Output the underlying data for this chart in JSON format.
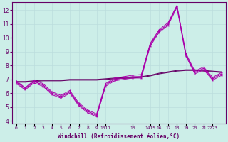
{
  "xlabel": "Windchill (Refroidissement éolien,°C)",
  "background_color": "#cceee8",
  "grid_color": "#bbdddd",
  "line_color_main": "#aa00aa",
  "line_color_dark": "#660066",
  "ylim": [
    3.8,
    12.6
  ],
  "yticks": [
    4,
    5,
    6,
    7,
    8,
    9,
    10,
    11,
    12
  ],
  "x_indices": [
    0,
    1,
    2,
    3,
    4,
    5,
    6,
    7,
    8,
    9,
    10,
    11,
    12,
    13,
    14,
    15,
    16,
    17,
    18,
    19,
    20,
    21,
    22,
    23
  ],
  "xtick_labels": [
    "0",
    "1",
    "2",
    "3",
    "4",
    "5",
    "6",
    "7",
    "8",
    "9",
    "1011",
    "",
    "13",
    "14",
    "15",
    "16",
    "17",
    "18",
    "19",
    "20",
    "21",
    "2223",
    "",
    ""
  ],
  "main_line_x": [
    0,
    1,
    2,
    3,
    4,
    5,
    6,
    7,
    8,
    9,
    10,
    11,
    13,
    14,
    15,
    16,
    17,
    18,
    19,
    20,
    21,
    22,
    23
  ],
  "main_line_y": [
    6.8,
    6.35,
    6.85,
    6.6,
    6.0,
    5.75,
    6.1,
    5.2,
    4.7,
    4.4,
    6.6,
    7.0,
    7.2,
    7.2,
    9.5,
    10.5,
    11.0,
    12.3,
    8.8,
    7.5,
    7.8,
    7.05,
    7.4
  ],
  "upper_line_x": [
    0,
    1,
    2,
    3,
    4,
    5,
    6,
    7,
    8,
    9,
    10,
    11,
    13,
    14,
    15,
    16,
    17,
    18,
    19,
    20,
    21,
    22,
    23
  ],
  "upper_line_y": [
    6.9,
    6.4,
    6.95,
    6.7,
    6.1,
    5.85,
    6.2,
    5.3,
    4.8,
    4.5,
    6.7,
    7.1,
    7.3,
    7.35,
    9.6,
    10.6,
    11.1,
    12.35,
    8.9,
    7.6,
    7.9,
    7.15,
    7.5
  ],
  "lower_line_x": [
    0,
    1,
    2,
    3,
    4,
    5,
    6,
    7,
    8,
    9,
    10,
    11,
    13,
    14,
    15,
    16,
    17,
    18,
    19,
    20,
    21,
    22,
    23
  ],
  "lower_line_y": [
    6.7,
    6.25,
    6.75,
    6.5,
    5.9,
    5.65,
    6.0,
    5.1,
    4.6,
    4.3,
    6.5,
    6.9,
    7.1,
    7.1,
    9.4,
    10.4,
    10.9,
    12.2,
    8.7,
    7.4,
    7.7,
    6.95,
    7.3
  ],
  "flat_line_x": [
    0,
    1,
    2,
    3,
    4,
    5,
    6,
    7,
    8,
    9,
    10,
    11,
    13,
    14,
    15,
    16,
    17,
    18,
    19,
    20,
    21,
    22,
    23
  ],
  "flat_line_y": [
    6.8,
    6.8,
    6.85,
    6.9,
    6.9,
    6.9,
    6.95,
    6.95,
    6.95,
    6.95,
    7.0,
    7.05,
    7.1,
    7.15,
    7.25,
    7.4,
    7.5,
    7.6,
    7.65,
    7.65,
    7.6,
    7.55,
    7.5
  ],
  "flat_line2_x": [
    0,
    1,
    2,
    3,
    4,
    5,
    6,
    7,
    8,
    9,
    10,
    11,
    13,
    14,
    15,
    16,
    17,
    18,
    19,
    20,
    21,
    22,
    23
  ],
  "flat_line2_y": [
    6.85,
    6.85,
    6.9,
    6.95,
    6.95,
    6.95,
    7.0,
    7.0,
    7.0,
    7.0,
    7.05,
    7.1,
    7.15,
    7.2,
    7.3,
    7.45,
    7.55,
    7.65,
    7.7,
    7.7,
    7.65,
    7.6,
    7.55
  ]
}
